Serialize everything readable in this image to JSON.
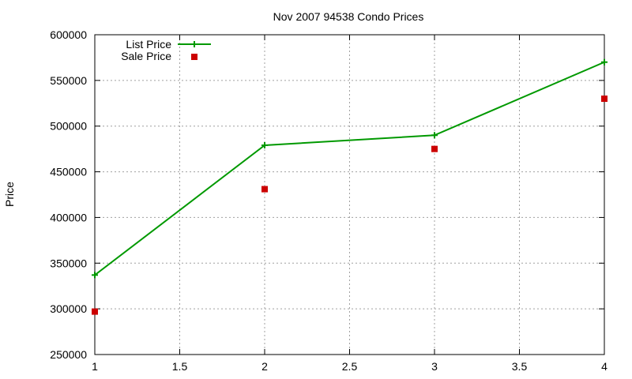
{
  "chart_data": {
    "type": "line",
    "title": "Nov 2007 94538 Condo Prices",
    "xlabel": "",
    "ylabel": "Price",
    "xlim": [
      1,
      4
    ],
    "ylim": [
      250000,
      600000
    ],
    "x_ticks": [
      "1",
      "1.5",
      "2",
      "2.5",
      "3",
      "3.5",
      "4"
    ],
    "y_ticks": [
      "250000",
      "300000",
      "350000",
      "400000",
      "450000",
      "500000",
      "550000",
      "600000"
    ],
    "grid": true,
    "legend_position": "top-left",
    "series": [
      {
        "name": "List Price",
        "style": "lines+points",
        "marker": "plus",
        "color": "#009900",
        "x": [
          1,
          2,
          3,
          4
        ],
        "y": [
          337000,
          479000,
          490000,
          570000
        ]
      },
      {
        "name": "Sale Price",
        "style": "points",
        "marker": "square",
        "color": "#cc0000",
        "x": [
          1,
          2,
          3,
          4
        ],
        "y": [
          297000,
          431000,
          475000,
          530000
        ]
      }
    ]
  }
}
